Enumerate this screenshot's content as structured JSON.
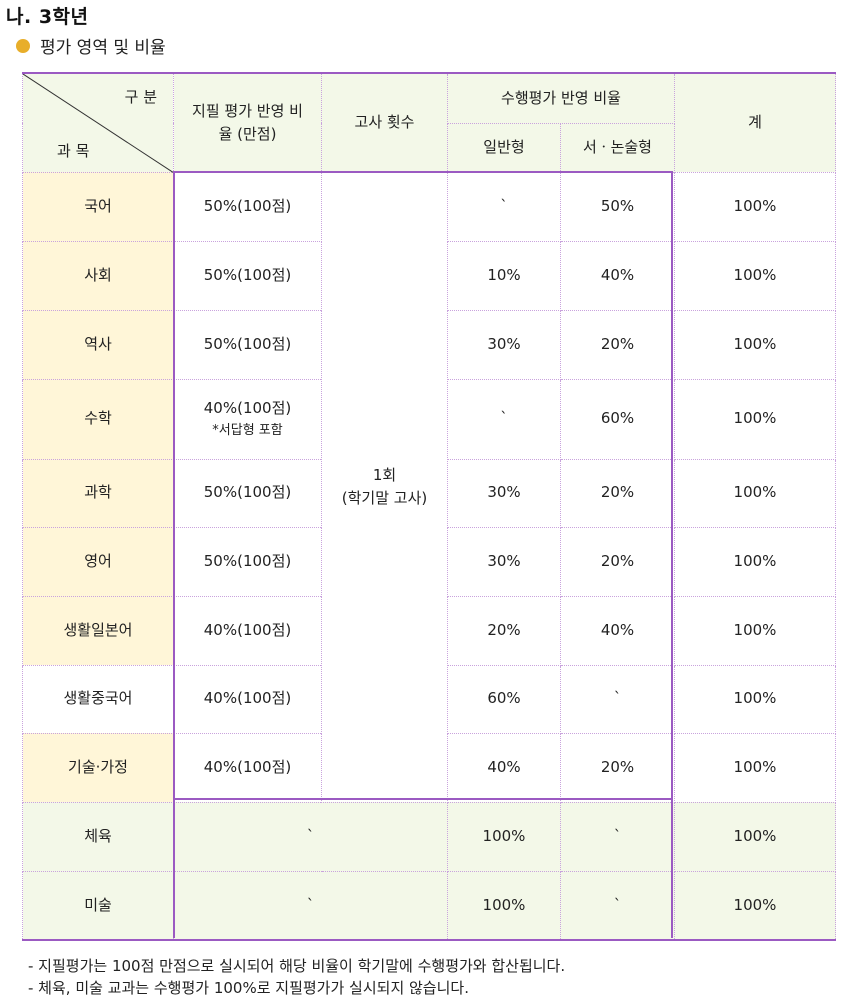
{
  "heading": "나. 3학년",
  "section_title": "평가 영역 및 비율",
  "header": {
    "gubun": "구 분",
    "gwamok": "과 목",
    "jipil": "지필 평가 반영 비율 (만점)",
    "gosa": "고사 횟수",
    "suhaeng": "수행평가 반영 비율",
    "ilban": "일반형",
    "seosul": "서ㆍ논술형",
    "total": "계"
  },
  "exam_count": {
    "line1": "1회",
    "line2": "(학기말 고사)"
  },
  "rows": [
    {
      "subject": "국어",
      "jipil": "50%(100점)",
      "ilban": "ˋ",
      "seosul": "50%",
      "total": "100%"
    },
    {
      "subject": "사회",
      "jipil": "50%(100점)",
      "ilban": "10%",
      "seosul": "40%",
      "total": "100%"
    },
    {
      "subject": "역사",
      "jipil": "50%(100점)",
      "ilban": "30%",
      "seosul": "20%",
      "total": "100%"
    },
    {
      "subject": "수학",
      "jipil": "40%(100점)",
      "jipil_note": "*서답형 포함",
      "ilban": "ˋ",
      "seosul": "60%",
      "total": "100%"
    },
    {
      "subject": "과학",
      "jipil": "50%(100점)",
      "ilban": "30%",
      "seosul": "20%",
      "total": "100%"
    },
    {
      "subject": "영어",
      "jipil": "50%(100점)",
      "ilban": "30%",
      "seosul": "20%",
      "total": "100%"
    },
    {
      "subject": "생활일본어",
      "jipil": "40%(100점)",
      "ilban": "20%",
      "seosul": "40%",
      "total": "100%"
    },
    {
      "subject": "생활중국어",
      "jipil": "40%(100점)",
      "ilban": "60%",
      "seosul": "ˋ",
      "total": "100%"
    },
    {
      "subject": "기술·가정",
      "jipil": "40%(100점)",
      "ilban": "40%",
      "seosul": "20%",
      "total": "100%"
    }
  ],
  "pe_rows": [
    {
      "subject": "체육",
      "jipil": "ˋ",
      "ilban": "100%",
      "seosul": "ˋ",
      "total": "100%"
    },
    {
      "subject": "미술",
      "jipil": "ˋ",
      "ilban": "100%",
      "seosul": "ˋ",
      "total": "100%"
    }
  ],
  "footnotes": [
    "- 지필평가는 100점 만점으로 실시되어 해당 비율이 학기말에 수행평가와 합산됩니다.",
    "- 체육, 미술 교과는 수행평가 100%로 지필평가가 실시되지 않습니다."
  ]
}
